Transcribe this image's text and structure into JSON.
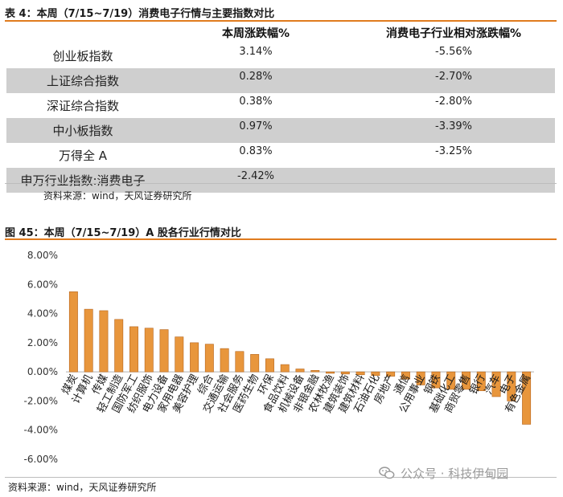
{
  "table_section": {
    "title": "表 4：本周（7/15~7/19）消费电子行情与主要指数对比",
    "headers": [
      "",
      "本周涨跌幅%",
      "消费电子行业相对涨跌幅%"
    ],
    "rows": [
      {
        "name": "创业板指数",
        "change": "3.14%",
        "relative": "-5.56%"
      },
      {
        "name": "上证综合指数",
        "change": "0.28%",
        "relative": "-2.70%"
      },
      {
        "name": "深证综合指数",
        "change": "0.38%",
        "relative": "-2.80%"
      },
      {
        "name": "中小板指数",
        "change": "0.97%",
        "relative": "-3.39%"
      },
      {
        "name": "万得全 A",
        "change": "0.83%",
        "relative": "-3.25%"
      },
      {
        "name": "申万行业指数:消费电子",
        "change": "-2.42%",
        "relative": ""
      }
    ],
    "source": "资料来源：wind，天风证券研究所"
  },
  "chart_section": {
    "title": "图 45：本周（7/15~7/19）A 股各行业行情对比",
    "source": "资料来源：wind，天风证券研究所",
    "watermark": "公众号 · 科技伊甸园"
  },
  "colors": {
    "accent": "#e07b1e",
    "bar": "#e8963c",
    "bar_dark": "#b5651d",
    "row_shade": "#cfcfcf"
  },
  "chart_data": {
    "type": "bar",
    "title": "本周（7/15~7/19）A 股各行业行情对比",
    "ylim": [
      -0.06,
      0.08
    ],
    "yticks": [
      "8.00%",
      "6.00%",
      "4.00%",
      "2.00%",
      "0.00%",
      "-2.00%",
      "-4.00%",
      "-6.00%"
    ],
    "ytick_values": [
      0.08,
      0.06,
      0.04,
      0.02,
      0,
      -0.02,
      -0.04,
      -0.06
    ],
    "categories": [
      "煤炭",
      "计算机",
      "传媒",
      "轻工制造",
      "国防军工",
      "纺织服饰",
      "电力设备",
      "家用电器",
      "美容护理",
      "综合",
      "交通运输",
      "社会服务",
      "医药生物",
      "环保",
      "食品饮料",
      "机械设备",
      "非银金融",
      "农林牧渔",
      "建筑装饰",
      "建筑材料",
      "石油石化",
      "房地产",
      "通信",
      "公用事业",
      "钢铁",
      "基础化工",
      "商贸零售",
      "银行",
      "汽车",
      "电子",
      "有色金属"
    ],
    "values": [
      0.055,
      0.043,
      0.042,
      0.036,
      0.031,
      0.03,
      0.029,
      0.024,
      0.02,
      0.019,
      0.016,
      0.014,
      0.012,
      0.009,
      0.005,
      0.002,
      0.001,
      -0.001,
      -0.0015,
      -0.002,
      -0.0025,
      -0.003,
      -0.005,
      -0.009,
      -0.011,
      -0.012,
      -0.012,
      -0.013,
      -0.017,
      -0.02,
      -0.036
    ]
  }
}
